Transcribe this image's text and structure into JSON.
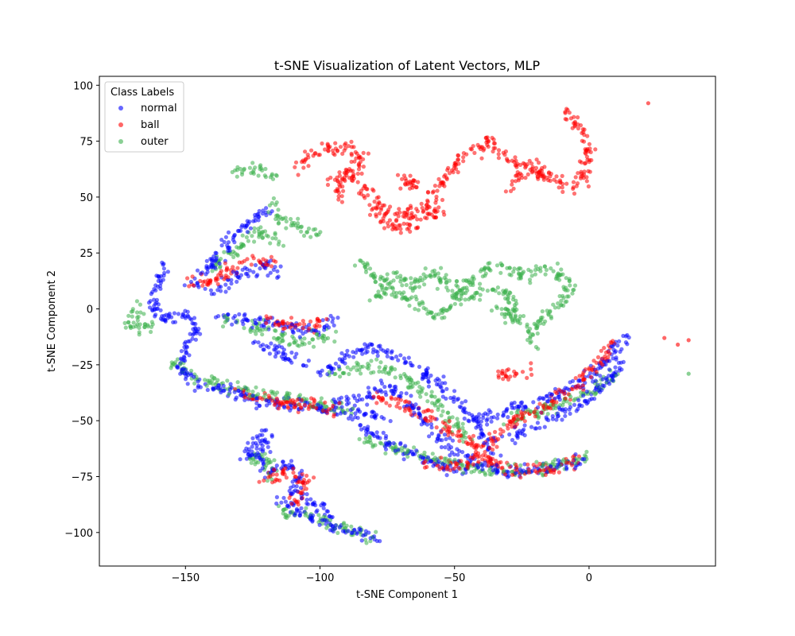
{
  "chart_data": {
    "type": "scatter",
    "title": "t-SNE Visualization of Latent Vectors, MLP",
    "xlabel": "t-SNE Component 1",
    "ylabel": "t-SNE Component 2",
    "xlim": [
      -182,
      47
    ],
    "ylim": [
      -115,
      104
    ],
    "xticks": [
      -150,
      -100,
      -50,
      0
    ],
    "xtick_labels": [
      "−150",
      "−100",
      "−50",
      "0"
    ],
    "yticks": [
      -100,
      -75,
      -50,
      -25,
      0,
      25,
      50,
      75,
      100
    ],
    "ytick_labels": [
      "−100",
      "−75",
      "−50",
      "−25",
      "0",
      "25",
      "50",
      "75",
      "100"
    ],
    "grid": false,
    "legend": {
      "title": "Class Labels",
      "placement": "upper left",
      "entries": [
        "normal",
        "ball",
        "outer"
      ]
    },
    "series": [
      {
        "name": "normal",
        "color": "#0000ff",
        "strands": [
          [
            [
              -157,
              20
            ],
            [
              -160,
              10
            ],
            [
              -162,
              0
            ],
            [
              -158,
              -5
            ],
            [
              -150,
              -2
            ],
            [
              -146,
              -10
            ],
            [
              -150,
              -20
            ],
            [
              -152,
              -28
            ],
            [
              -145,
              -33
            ],
            [
              -135,
              -37
            ],
            [
              -120,
              -42
            ],
            [
              -105,
              -44
            ],
            [
              -90,
              -46
            ],
            [
              -75,
              -48
            ]
          ],
          [
            [
              -148,
              10
            ],
            [
              -140,
              20
            ],
            [
              -133,
              32
            ],
            [
              -125,
              40
            ],
            [
              -118,
              45
            ]
          ],
          [
            [
              -140,
              8
            ],
            [
              -130,
              15
            ],
            [
              -120,
              20
            ],
            [
              -115,
              15
            ]
          ],
          [
            [
              -138,
              -3
            ],
            [
              -125,
              -5
            ],
            [
              -112,
              -8
            ],
            [
              -100,
              -10
            ],
            [
              -95,
              -5
            ]
          ],
          [
            [
              -125,
              -15
            ],
            [
              -115,
              -20
            ],
            [
              -105,
              -25
            ]
          ],
          [
            [
              -100,
              -30
            ],
            [
              -90,
              -22
            ],
            [
              -80,
              -18
            ],
            [
              -70,
              -22
            ],
            [
              -60,
              -30
            ],
            [
              -50,
              -40
            ],
            [
              -42,
              -50
            ],
            [
              -38,
              -60
            ],
            [
              -35,
              -66
            ]
          ],
          [
            [
              -95,
              -42
            ],
            [
              -85,
              -40
            ],
            [
              -75,
              -35
            ],
            [
              -65,
              -45
            ],
            [
              -58,
              -55
            ],
            [
              -52,
              -62
            ],
            [
              -40,
              -70
            ],
            [
              -30,
              -73
            ],
            [
              -20,
              -72
            ],
            [
              -10,
              -70
            ],
            [
              -2,
              -68
            ]
          ],
          [
            [
              -85,
              -52
            ],
            [
              -75,
              -60
            ],
            [
              -65,
              -66
            ],
            [
              -55,
              -70
            ],
            [
              -45,
              -72
            ]
          ],
          [
            [
              -40,
              -50
            ],
            [
              -30,
              -45
            ],
            [
              -20,
              -42
            ],
            [
              -10,
              -37
            ],
            [
              0,
              -32
            ],
            [
              5,
              -25
            ],
            [
              10,
              -18
            ],
            [
              14,
              -12
            ]
          ],
          [
            [
              -30,
              -58
            ],
            [
              -20,
              -52
            ],
            [
              -10,
              -46
            ],
            [
              0,
              -40
            ],
            [
              8,
              -32
            ],
            [
              12,
              -22
            ]
          ],
          [
            [
              -128,
              -67
            ],
            [
              -125,
              -60
            ],
            [
              -120,
              -55
            ],
            [
              -122,
              -70
            ]
          ],
          [
            [
              -120,
              -75
            ],
            [
              -115,
              -70
            ],
            [
              -108,
              -72
            ],
            [
              -110,
              -82
            ],
            [
              -105,
              -85
            ],
            [
              -98,
              -90
            ],
            [
              -96,
              -98
            ],
            [
              -85,
              -100
            ],
            [
              -80,
              -103
            ]
          ],
          [
            [
              -115,
              -85
            ],
            [
              -108,
              -90
            ],
            [
              -100,
              -95
            ]
          ]
        ]
      },
      {
        "name": "ball",
        "color": "#ff0000",
        "strands": [
          [
            [
              -108,
              62
            ],
            [
              -104,
              68
            ],
            [
              -97,
              73
            ],
            [
              -90,
              72
            ],
            [
              -84,
              68
            ],
            [
              -88,
              60
            ],
            [
              -95,
              58
            ],
            [
              -92,
              50
            ]
          ],
          [
            [
              -90,
              62
            ],
            [
              -85,
              55
            ],
            [
              -80,
              48
            ],
            [
              -75,
              45
            ],
            [
              -70,
              40
            ],
            [
              -63,
              44
            ],
            [
              -58,
              50
            ],
            [
              -55,
              57
            ],
            [
              -50,
              62
            ],
            [
              -47,
              70
            ]
          ],
          [
            [
              -80,
              45
            ],
            [
              -75,
              38
            ],
            [
              -68,
              35
            ],
            [
              -62,
              40
            ],
            [
              -57,
              43
            ],
            [
              -55,
              48
            ]
          ],
          [
            [
              -45,
              70
            ],
            [
              -40,
              72
            ],
            [
              -37,
              75
            ],
            [
              -33,
              68
            ],
            [
              -28,
              65
            ],
            [
              -22,
              66
            ],
            [
              -17,
              60
            ],
            [
              -12,
              57
            ],
            [
              -6,
              55
            ],
            [
              -2,
              60
            ],
            [
              0,
              70
            ],
            [
              -2,
              78
            ],
            [
              -6,
              84
            ],
            [
              -8,
              89
            ]
          ],
          [
            [
              -30,
              55
            ],
            [
              -25,
              60
            ],
            [
              -20,
              62
            ],
            [
              -15,
              58
            ]
          ],
          [
            [
              -68,
              60
            ],
            [
              -65,
              55
            ],
            [
              -72,
              58
            ]
          ],
          [
            [
              -150,
              12
            ],
            [
              -140,
              12
            ],
            [
              -128,
              22
            ],
            [
              -118,
              20
            ]
          ],
          [
            [
              -120,
              -5
            ],
            [
              -105,
              -8
            ],
            [
              -98,
              -6
            ]
          ],
          [
            [
              -130,
              -38
            ],
            [
              -110,
              -43
            ],
            [
              -92,
              -45
            ]
          ],
          [
            [
              -80,
              -40
            ],
            [
              -65,
              -45
            ],
            [
              -50,
              -55
            ],
            [
              -40,
              -65
            ],
            [
              -30,
              -72
            ],
            [
              -15,
              -72
            ],
            [
              -5,
              -68
            ]
          ],
          [
            [
              -60,
              -70
            ],
            [
              -45,
              -70
            ],
            [
              -35,
              -58
            ],
            [
              -25,
              -48
            ],
            [
              -15,
              -42
            ],
            [
              -5,
              -35
            ],
            [
              5,
              -22
            ],
            [
              10,
              -15
            ]
          ],
          [
            [
              -35,
              -30
            ],
            [
              -28,
              -28
            ],
            [
              -22,
              -28
            ]
          ],
          [
            [
              -122,
              -78
            ],
            [
              -112,
              -72
            ],
            [
              -105,
              -76
            ],
            [
              -110,
              -88
            ]
          ]
        ],
        "outliers": [
          [
            22,
            92
          ],
          [
            28,
            -13
          ],
          [
            33,
            -16
          ],
          [
            37,
            -14
          ]
        ]
      },
      {
        "name": "outer",
        "color": "#3cb04c",
        "strands": [
          [
            [
              -133,
              60
            ],
            [
              -128,
              63
            ],
            [
              -122,
              62
            ],
            [
              -116,
              60
            ]
          ],
          [
            [
              -118,
              47
            ],
            [
              -115,
              40
            ],
            [
              -110,
              38
            ],
            [
              -105,
              35
            ],
            [
              -100,
              32
            ]
          ],
          [
            [
              -85,
              22
            ],
            [
              -80,
              15
            ],
            [
              -75,
              10
            ],
            [
              -68,
              5
            ],
            [
              -62,
              0
            ],
            [
              -56,
              -3
            ],
            [
              -50,
              3
            ],
            [
              -46,
              12
            ],
            [
              -40,
              17
            ],
            [
              -32,
              20
            ],
            [
              -25,
              15
            ],
            [
              -18,
              18
            ],
            [
              -12,
              16
            ],
            [
              -6,
              12
            ],
            [
              -10,
              3
            ],
            [
              -18,
              -5
            ],
            [
              -22,
              -10
            ],
            [
              -20,
              -16
            ]
          ],
          [
            [
              -80,
              5
            ],
            [
              -72,
              15
            ],
            [
              -65,
              10
            ],
            [
              -58,
              18
            ],
            [
              -52,
              10
            ],
            [
              -45,
              5
            ],
            [
              -38,
              10
            ],
            [
              -30,
              8
            ],
            [
              -27,
              2
            ],
            [
              -30,
              -5
            ]
          ],
          [
            [
              -35,
              0
            ],
            [
              -28,
              -3
            ],
            [
              -22,
              -8
            ]
          ],
          [
            [
              -168,
              3
            ],
            [
              -170,
              -8
            ],
            [
              -166,
              -10
            ],
            [
              -162,
              -6
            ]
          ],
          [
            [
              -155,
              -24
            ],
            [
              -146,
              -30
            ],
            [
              -135,
              -35
            ],
            [
              -120,
              -38
            ],
            [
              -105,
              -42
            ],
            [
              -88,
              -45
            ]
          ],
          [
            [
              -140,
              18
            ],
            [
              -130,
              28
            ],
            [
              -122,
              35
            ],
            [
              -115,
              30
            ]
          ],
          [
            [
              -135,
              -5
            ],
            [
              -120,
              -10
            ],
            [
              -108,
              -15
            ],
            [
              -95,
              -12
            ]
          ],
          [
            [
              -95,
              -28
            ],
            [
              -80,
              -25
            ],
            [
              -70,
              -30
            ],
            [
              -60,
              -38
            ],
            [
              -52,
              -48
            ],
            [
              -45,
              -58
            ]
          ],
          [
            [
              -85,
              -58
            ],
            [
              -70,
              -63
            ],
            [
              -55,
              -68
            ],
            [
              -40,
              -72
            ],
            [
              -25,
              -72
            ],
            [
              -10,
              -70
            ],
            [
              -1,
              -66
            ]
          ],
          [
            [
              -30,
              -50
            ],
            [
              -15,
              -45
            ],
            [
              0,
              -38
            ],
            [
              10,
              -28
            ]
          ],
          [
            [
              -128,
              -68
            ],
            [
              -120,
              -65
            ],
            [
              -118,
              -75
            ]
          ],
          [
            [
              -115,
              -90
            ],
            [
              -105,
              -92
            ],
            [
              -95,
              -96
            ],
            [
              -85,
              -101
            ],
            [
              -80,
              -104
            ]
          ]
        ],
        "outliers": [
          [
            37,
            -29
          ]
        ]
      }
    ]
  }
}
